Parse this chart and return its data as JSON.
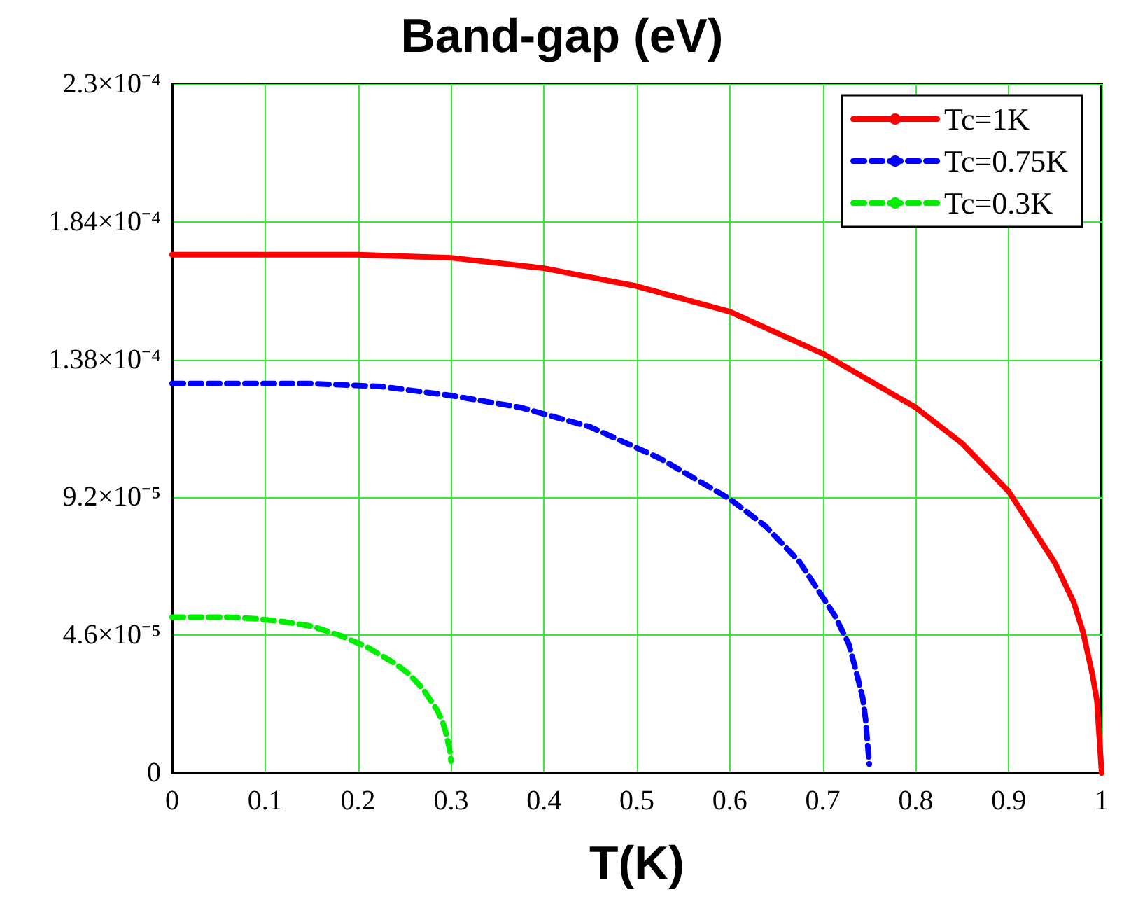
{
  "chart_data": {
    "type": "line",
    "title": "Band-gap (eV)",
    "xlabel": "T(K)",
    "xlim": [
      0,
      1
    ],
    "xticks": [
      0,
      0.1,
      0.2,
      0.3,
      0.4,
      0.5,
      0.6,
      0.7,
      0.8,
      0.9,
      1
    ],
    "ylim": [
      0,
      0.00023
    ],
    "yticks": [
      0,
      {
        "value": 4.6e-05,
        "label": "4.6×10⁻⁵"
      },
      {
        "value": 9.2e-05,
        "label": "9.2×10⁻⁵"
      },
      {
        "value": 0.000138,
        "label": "1.38×10⁻⁴"
      },
      {
        "value": 0.000184,
        "label": "1.84×10⁻⁴"
      },
      {
        "value": 0.00023,
        "label": "2.3×10⁻⁴"
      }
    ],
    "grid": true,
    "legend": "top right",
    "marker": "none",
    "series": [
      {
        "name": "Tc=1K",
        "color": "#ff0000",
        "line_style": "solid",
        "x": [
          0,
          0.1,
          0.2,
          0.3,
          0.4,
          0.5,
          0.6,
          0.7,
          0.8,
          0.85,
          0.9,
          0.95,
          0.97,
          0.98,
          0.99,
          0.995,
          1
        ],
        "values": [
          0.000173,
          0.000173,
          0.000173,
          0.000172,
          0.0001685,
          0.0001625,
          0.000154,
          0.00014,
          0.000122,
          0.00011,
          9.4e-05,
          7e-05,
          5.7e-05,
          4.7e-05,
          3.3e-05,
          2.4e-05,
          0
        ]
      },
      {
        "name": "Tc=0.75K",
        "color": "#0000ff",
        "line_style": "dashed",
        "x": [
          0,
          0.075,
          0.15,
          0.225,
          0.3,
          0.375,
          0.45,
          0.525,
          0.6,
          0.638,
          0.675,
          0.713,
          0.728,
          0.735,
          0.743,
          0.746,
          0.75
        ],
        "values": [
          0.00013,
          0.00013,
          0.00013,
          0.000129,
          0.000126,
          0.000122,
          0.0001155,
          0.000105,
          9.15e-05,
          8.25e-05,
          7.05e-05,
          5.25e-05,
          4.3e-05,
          3.5e-05,
          2.5e-05,
          1.8e-05,
          3e-06
        ]
      },
      {
        "name": "Tc=0.3K",
        "color": "#00ee00",
        "line_style": "dashed",
        "x": [
          0,
          0.03,
          0.06,
          0.09,
          0.12,
          0.15,
          0.18,
          0.21,
          0.24,
          0.255,
          0.27,
          0.285,
          0.291,
          0.294,
          0.297,
          0.299,
          0.3
        ],
        "values": [
          5.2e-05,
          5.2e-05,
          5.2e-05,
          5.15e-05,
          5.05e-05,
          4.9e-05,
          4.6e-05,
          4.2e-05,
          3.65e-05,
          3.3e-05,
          2.8e-05,
          2.1e-05,
          1.7e-05,
          1.4e-05,
          1e-05,
          7e-06,
          4e-06
        ]
      }
    ]
  }
}
